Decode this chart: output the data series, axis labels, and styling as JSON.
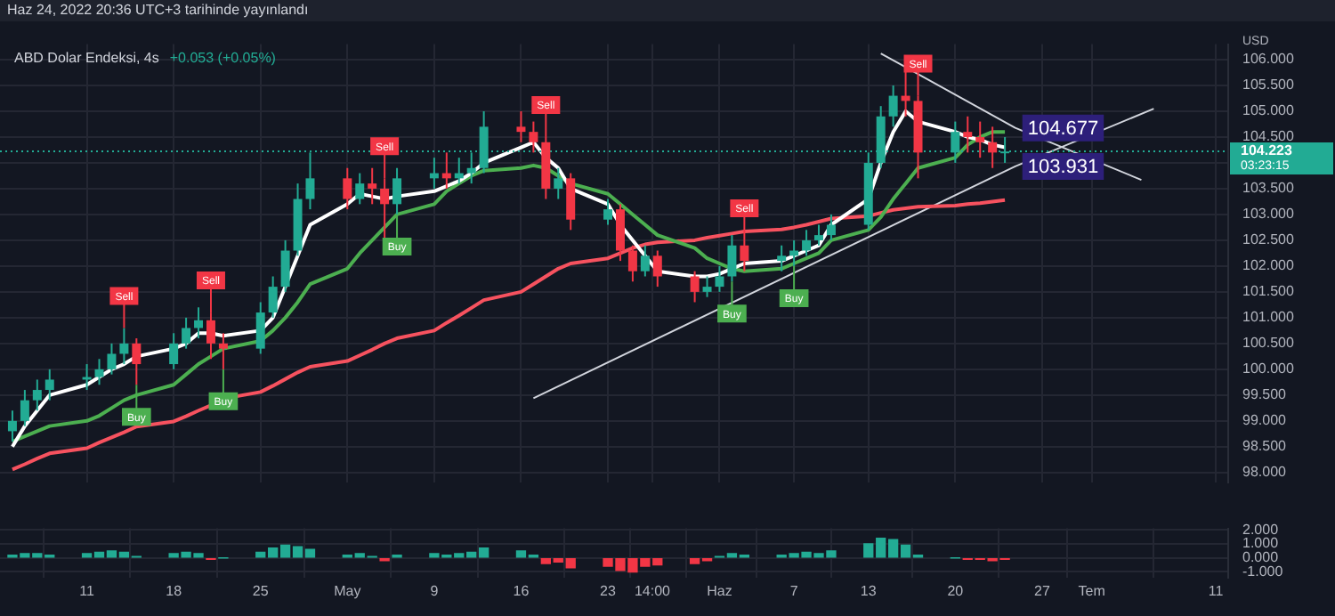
{
  "chart_data": [
    {
      "type": "candlestick",
      "title": "ABD Dolar Endeksi, 4s",
      "subtitle": "+0.053 (+0.05%)",
      "ylabel": "USD",
      "x": [
        "2022-04-05",
        "2022-04-06",
        "2022-04-07",
        "2022-04-08",
        "2022-04-11",
        "2022-04-12",
        "2022-04-13",
        "2022-04-14",
        "2022-04-15",
        "2022-04-18",
        "2022-04-19",
        "2022-04-20",
        "2022-04-21",
        "2022-04-22",
        "2022-04-25",
        "2022-04-26",
        "2022-04-27",
        "2022-04-28",
        "2022-04-29",
        "2022-05-02",
        "2022-05-03",
        "2022-05-04",
        "2022-05-05",
        "2022-05-06",
        "2022-05-09",
        "2022-05-10",
        "2022-05-11",
        "2022-05-12",
        "2022-05-13",
        "2022-05-16",
        "2022-05-17",
        "2022-05-18",
        "2022-05-19",
        "2022-05-20",
        "2022-05-23",
        "2022-05-24",
        "2022-05-25",
        "2022-05-26",
        "2022-05-27",
        "2022-05-30",
        "2022-05-31",
        "2022-06-01",
        "2022-06-02",
        "2022-06-03",
        "2022-06-06",
        "2022-06-07",
        "2022-06-08",
        "2022-06-09",
        "2022-06-10",
        "2022-06-13",
        "2022-06-14",
        "2022-06-15",
        "2022-06-16",
        "2022-06-17",
        "2022-06-20",
        "2022-06-21",
        "2022-06-22",
        "2022-06-23",
        "2022-06-24"
      ],
      "ohlc": [
        [
          98.8,
          99.2,
          98.6,
          99.0
        ],
        [
          99.0,
          99.6,
          98.9,
          99.4
        ],
        [
          99.4,
          99.8,
          99.2,
          99.6
        ],
        [
          99.6,
          100.0,
          99.4,
          99.8
        ],
        [
          99.8,
          100.1,
          99.6,
          99.85
        ],
        [
          99.85,
          100.2,
          99.7,
          100.0
        ],
        [
          100.0,
          100.5,
          99.9,
          100.3
        ],
        [
          100.3,
          100.8,
          100.1,
          100.5
        ],
        [
          100.5,
          100.6,
          99.7,
          100.1
        ],
        [
          100.1,
          100.7,
          100.0,
          100.5
        ],
        [
          100.5,
          101.0,
          100.4,
          100.8
        ],
        [
          100.8,
          101.2,
          100.6,
          100.95
        ],
        [
          100.95,
          101.1,
          100.2,
          100.5
        ],
        [
          100.5,
          100.7,
          100.0,
          100.4
        ],
        [
          100.4,
          101.3,
          100.3,
          101.1
        ],
        [
          101.1,
          101.8,
          101.0,
          101.6
        ],
        [
          101.6,
          102.5,
          101.5,
          102.3
        ],
        [
          102.3,
          103.6,
          102.2,
          103.3
        ],
        [
          103.3,
          104.2,
          103.1,
          103.7
        ],
        [
          103.7,
          103.9,
          103.1,
          103.3
        ],
        [
          103.3,
          103.8,
          103.2,
          103.6
        ],
        [
          103.6,
          103.9,
          103.2,
          103.5
        ],
        [
          103.5,
          103.7,
          102.5,
          103.2
        ],
        [
          103.2,
          103.9,
          103.0,
          103.7
        ],
        [
          103.7,
          104.1,
          103.5,
          103.8
        ],
        [
          103.8,
          104.2,
          103.5,
          103.7
        ],
        [
          103.7,
          104.1,
          103.6,
          103.8
        ],
        [
          103.8,
          104.2,
          103.6,
          103.9
        ],
        [
          103.9,
          105.0,
          103.8,
          104.7
        ],
        [
          104.7,
          105.0,
          104.4,
          104.6
        ],
        [
          104.6,
          104.8,
          104.2,
          104.4
        ],
        [
          104.4,
          104.5,
          103.3,
          103.5
        ],
        [
          103.5,
          103.9,
          103.3,
          103.7
        ],
        [
          103.7,
          103.8,
          102.7,
          102.9
        ],
        [
          102.9,
          103.3,
          102.8,
          103.1
        ],
        [
          103.1,
          103.2,
          102.1,
          102.3
        ],
        [
          102.3,
          102.4,
          101.7,
          101.9
        ],
        [
          101.9,
          102.4,
          101.8,
          102.2
        ],
        [
          102.2,
          102.3,
          101.6,
          101.8
        ],
        [
          101.8,
          101.9,
          101.3,
          101.5
        ],
        [
          101.5,
          101.8,
          101.4,
          101.6
        ],
        [
          101.6,
          102.0,
          101.5,
          101.8
        ],
        [
          101.8,
          102.6,
          101.7,
          102.4
        ],
        [
          102.4,
          102.5,
          101.9,
          102.1
        ],
        [
          102.1,
          102.4,
          101.9,
          102.2
        ],
        [
          102.2,
          102.5,
          102.0,
          102.3
        ],
        [
          102.3,
          102.7,
          102.2,
          102.5
        ],
        [
          102.5,
          102.8,
          102.4,
          102.6
        ],
        [
          102.6,
          103.0,
          102.5,
          102.8
        ],
        [
          102.8,
          104.2,
          102.7,
          104.0
        ],
        [
          104.0,
          105.1,
          103.9,
          104.9
        ],
        [
          104.9,
          105.5,
          104.7,
          105.3
        ],
        [
          105.3,
          105.8,
          104.9,
          105.2
        ],
        [
          105.2,
          105.3,
          103.7,
          104.2
        ],
        [
          104.2,
          104.8,
          104.0,
          104.6
        ],
        [
          104.6,
          104.9,
          104.2,
          104.5
        ],
        [
          104.5,
          104.8,
          104.1,
          104.4
        ],
        [
          104.4,
          104.7,
          103.9,
          104.2
        ],
        [
          104.2,
          104.5,
          104.0,
          104.22
        ]
      ],
      "series": [
        {
          "type": "line",
          "color": "#ffffff",
          "values": [
            98.5,
            98.9,
            99.2,
            99.5,
            99.7,
            99.85,
            100.0,
            100.1,
            100.25,
            100.4,
            100.5,
            100.7,
            100.7,
            100.65,
            100.75,
            101.0,
            101.6,
            102.2,
            102.8,
            103.2,
            103.4,
            103.35,
            103.3,
            103.35,
            103.45,
            103.55,
            103.65,
            103.8,
            104.0,
            104.3,
            104.4,
            104.1,
            103.9,
            103.5,
            103.2,
            102.8,
            102.5,
            102.2,
            101.9,
            101.8,
            101.8,
            101.85,
            101.95,
            102.05,
            102.1,
            102.2,
            102.3,
            102.4,
            102.8,
            103.3,
            104.0,
            104.6,
            105.0,
            104.8,
            104.6,
            104.5,
            104.45,
            104.35,
            104.3
          ]
        },
        {
          "type": "line",
          "color": "#4caf50",
          "values": [
            98.6,
            98.7,
            98.8,
            98.9,
            99.0,
            99.1,
            99.25,
            99.4,
            99.5,
            99.7,
            99.9,
            100.1,
            100.25,
            100.4,
            100.55,
            100.75,
            101.0,
            101.3,
            101.65,
            101.95,
            102.25,
            102.5,
            102.75,
            103.0,
            103.2,
            103.45,
            103.6,
            103.75,
            103.85,
            103.9,
            103.95,
            103.9,
            103.75,
            103.6,
            103.4,
            103.2,
            103.0,
            102.8,
            102.6,
            102.35,
            102.15,
            102.05,
            101.95,
            101.9,
            101.95,
            102.05,
            102.15,
            102.25,
            102.5,
            102.7,
            102.95,
            103.3,
            103.6,
            103.9,
            104.1,
            104.35,
            104.5,
            104.6,
            104.6
          ]
        },
        {
          "type": "line",
          "color": "#f7525f",
          "values": [
            98.06,
            98.16,
            98.27,
            98.37,
            98.47,
            98.58,
            98.68,
            98.78,
            98.89,
            98.99,
            99.09,
            99.2,
            99.3,
            99.43,
            99.56,
            99.68,
            99.81,
            99.94,
            100.05,
            100.16,
            100.27,
            100.38,
            100.5,
            100.6,
            100.75,
            100.9,
            101.04,
            101.19,
            101.34,
            101.5,
            101.65,
            101.8,
            101.95,
            102.05,
            102.15,
            102.25,
            102.35,
            102.42,
            102.46,
            102.5,
            102.55,
            102.59,
            102.63,
            102.67,
            102.71,
            102.75,
            102.8,
            102.86,
            102.92,
            102.97,
            103.03,
            103.09,
            103.12,
            103.15,
            103.17,
            103.2,
            103.22,
            103.25,
            103.28
          ]
        },
        {
          "type": "line",
          "color": "#d1d4dc",
          "x": [
            "2022-05-17",
            "2022-06-24T20:00",
            "2022-07-06"
          ],
          "values": [
            99.44,
            103.931,
            105.05
          ],
          "value_labels": [
            null,
            "103.931",
            null
          ]
        },
        {
          "type": "line",
          "color": "#d1d4dc",
          "x": [
            "2022-06-14",
            "2022-06-24T20:00",
            "2022-07-05"
          ],
          "values": [
            106.12,
            104.677,
            103.67
          ],
          "value_labels": [
            null,
            "104.677",
            null
          ]
        }
      ],
      "annotations": [
        "Haz 24, 2022 20:36 UTC+3 tarihinde yayınlandı",
        "03:23:15",
        {
          "text": "Sell",
          "x": "2022-04-14",
          "y": 100.8
        },
        {
          "text": "Buy",
          "x": "2022-04-15",
          "y": 99.7
        },
        {
          "text": "Sell",
          "x": "2022-04-21",
          "y": 101.1
        },
        {
          "text": "Buy",
          "x": "2022-04-22",
          "y": 100.0
        },
        {
          "text": "Sell",
          "x": "2022-05-05",
          "y": 103.7
        },
        {
          "text": "Buy",
          "x": "2022-05-06",
          "y": 103.0
        },
        {
          "text": "Sell",
          "x": "2022-05-18",
          "y": 104.5
        },
        {
          "text": "Buy",
          "x": "2022-06-02",
          "y": 101.7
        },
        {
          "text": "Sell",
          "x": "2022-06-03",
          "y": 102.5
        },
        {
          "text": "Buy",
          "x": "2022-06-07",
          "y": 102.0
        },
        {
          "text": "Sell",
          "x": "2022-06-17",
          "y": 105.3
        }
      ],
      "ref_lines": [
        {
          "axis": "y",
          "value": 104.223,
          "label": "104.223",
          "color": "#22ab94",
          "line_style": "dotted"
        }
      ],
      "xlim": [
        "2022-04-04",
        "2022-07-12"
      ],
      "xticks": [
        {
          "value": "2022-04-11",
          "label": null
        },
        {
          "value": "2022-04-18",
          "label": null
        },
        {
          "value": "2022-04-25",
          "label": null
        },
        {
          "value": "2022-05-02",
          "label": null
        },
        {
          "value": "2022-05-09",
          "label": null
        },
        {
          "value": "2022-05-16",
          "label": null
        },
        {
          "value": "2022-05-23",
          "label": null
        },
        {
          "value": "2022-05-26T14:00",
          "label": null
        },
        {
          "value": "2022-06-01",
          "label": null
        },
        {
          "value": "2022-06-07",
          "label": null
        },
        {
          "value": "2022-06-13",
          "label": null
        },
        {
          "value": "2022-06-20",
          "label": null
        },
        {
          "value": "2022-06-27",
          "label": null
        },
        {
          "value": "2022-07-01",
          "label": null
        },
        {
          "value": "2022-07-11",
          "label": null
        }
      ],
      "ylim": [
        97.8,
        106.3
      ],
      "yticks": [
        {
          "value": 98,
          "label": "98.000"
        },
        {
          "value": 98.5,
          "label": "98.500"
        },
        {
          "value": 99,
          "label": "99.000"
        },
        {
          "value": 99.5,
          "label": "99.500"
        },
        {
          "value": 100,
          "label": "100.000"
        },
        {
          "value": 100.5,
          "label": "100.500"
        },
        {
          "value": 101,
          "label": "101.000"
        },
        {
          "value": 101.5,
          "label": "101.500"
        },
        {
          "value": 102,
          "label": "102.000"
        },
        {
          "value": 102.5,
          "label": "102.500"
        },
        {
          "value": 103,
          "label": "103.000"
        },
        {
          "value": 103.5,
          "label": "103.500"
        },
        {
          "value": 104,
          "label": null
        },
        {
          "value": 104.5,
          "label": "104.500"
        },
        {
          "value": 105,
          "label": "105.000"
        },
        {
          "value": 105.5,
          "label": "105.500"
        },
        {
          "value": 106,
          "label": "106.000"
        }
      ],
      "grid": true,
      "tick_labels": "y"
    },
    {
      "type": "bar",
      "x": [
        "2022-04-05",
        "2022-04-06",
        "2022-04-07",
        "2022-04-08",
        "2022-04-11",
        "2022-04-12",
        "2022-04-13",
        "2022-04-14",
        "2022-04-15",
        "2022-04-18",
        "2022-04-19",
        "2022-04-20",
        "2022-04-21",
        "2022-04-22",
        "2022-04-25",
        "2022-04-26",
        "2022-04-27",
        "2022-04-28",
        "2022-04-29",
        "2022-05-02",
        "2022-05-03",
        "2022-05-04",
        "2022-05-05",
        "2022-05-06",
        "2022-05-09",
        "2022-05-10",
        "2022-05-11",
        "2022-05-12",
        "2022-05-13",
        "2022-05-16",
        "2022-05-17",
        "2022-05-18",
        "2022-05-19",
        "2022-05-20",
        "2022-05-23",
        "2022-05-24",
        "2022-05-25",
        "2022-05-26",
        "2022-05-27",
        "2022-05-30",
        "2022-05-31",
        "2022-06-01",
        "2022-06-02",
        "2022-06-03",
        "2022-06-06",
        "2022-06-07",
        "2022-06-08",
        "2022-06-09",
        "2022-06-10",
        "2022-06-13",
        "2022-06-14",
        "2022-06-15",
        "2022-06-16",
        "2022-06-17",
        "2022-06-20",
        "2022-06-21",
        "2022-06-22",
        "2022-06-23",
        "2022-06-24"
      ],
      "values": [
        0.2,
        0.3,
        0.3,
        0.2,
        0.3,
        0.4,
        0.5,
        0.4,
        0.1,
        0.3,
        0.4,
        0.3,
        -0.1,
        0.0,
        0.4,
        0.7,
        0.9,
        0.8,
        0.6,
        0.2,
        0.3,
        0.1,
        -0.2,
        0.2,
        0.3,
        0.2,
        0.3,
        0.4,
        0.7,
        0.5,
        0.2,
        -0.4,
        -0.3,
        -0.7,
        -0.6,
        -0.9,
        -1.0,
        -0.6,
        -0.5,
        -0.4,
        -0.2,
        0.1,
        0.3,
        0.2,
        0.2,
        0.3,
        0.4,
        0.3,
        0.5,
        1.0,
        1.4,
        1.3,
        0.9,
        0.2,
        0.0,
        -0.1,
        -0.1,
        -0.2,
        -0.1
      ],
      "colors": [
        "#22ab94",
        "#22ab94",
        "#22ab94",
        "#22ab94",
        "#22ab94",
        "#22ab94",
        "#22ab94",
        "#22ab94",
        "#22ab94",
        "#22ab94",
        "#22ab94",
        "#22ab94",
        "#f23645",
        "#22ab94",
        "#22ab94",
        "#22ab94",
        "#22ab94",
        "#22ab94",
        "#22ab94",
        "#22ab94",
        "#22ab94",
        "#22ab94",
        "#f23645",
        "#22ab94",
        "#22ab94",
        "#22ab94",
        "#22ab94",
        "#22ab94",
        "#22ab94",
        "#22ab94",
        "#22ab94",
        "#f23645",
        "#f23645",
        "#f23645",
        "#f23645",
        "#f23645",
        "#f23645",
        "#f23645",
        "#f23645",
        "#f23645",
        "#f23645",
        "#22ab94",
        "#22ab94",
        "#22ab94",
        "#22ab94",
        "#22ab94",
        "#22ab94",
        "#22ab94",
        "#22ab94",
        "#22ab94",
        "#22ab94",
        "#22ab94",
        "#22ab94",
        "#22ab94",
        "#22ab94",
        "#f23645",
        "#f23645",
        "#f23645",
        "#f23645"
      ],
      "xlim": [
        "2022-04-04",
        "2022-07-12"
      ],
      "xticks": [
        {
          "value": "2022-04-11",
          "label": "11"
        },
        {
          "value": "2022-04-18",
          "label": "18"
        },
        {
          "value": "2022-04-25",
          "label": "25"
        },
        {
          "value": "2022-05-02",
          "label": "May"
        },
        {
          "value": "2022-05-09",
          "label": "9"
        },
        {
          "value": "2022-05-16",
          "label": "16"
        },
        {
          "value": "2022-05-23",
          "label": "23"
        },
        {
          "value": "2022-05-26T14:00",
          "label": "14:00"
        },
        {
          "value": "2022-06-01",
          "label": "Haz"
        },
        {
          "value": "2022-06-07",
          "label": "7"
        },
        {
          "value": "2022-06-13",
          "label": "13"
        },
        {
          "value": "2022-06-20",
          "label": "20"
        },
        {
          "value": "2022-06-27",
          "label": "27"
        },
        {
          "value": "2022-07-01",
          "label": "Tem"
        },
        {
          "value": "2022-07-11",
          "label": "11"
        }
      ],
      "ylim": [
        -1.4,
        2.1
      ],
      "yticks": [
        {
          "value": -1,
          "label": "-1.000"
        },
        {
          "value": 0,
          "label": "0.000"
        },
        {
          "value": 1,
          "label": "1.000"
        },
        {
          "value": 2,
          "label": "2.000"
        }
      ],
      "grid": true
    }
  ]
}
